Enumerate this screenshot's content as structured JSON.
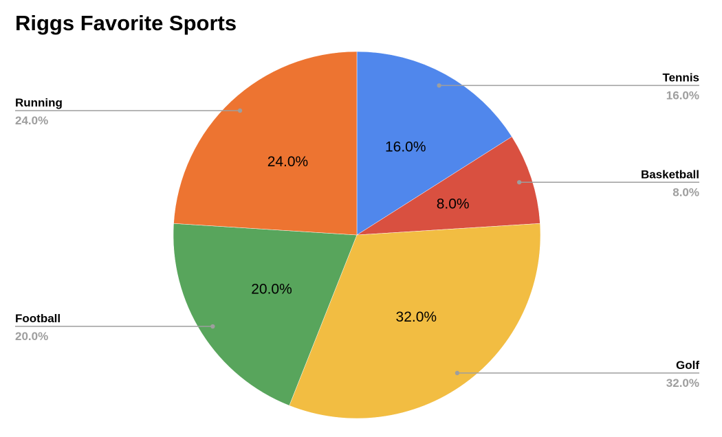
{
  "chart_data": {
    "type": "pie",
    "title": "Riggs Favorite Sports",
    "slices": [
      {
        "label": "Tennis",
        "value": 16.0,
        "display": "16.0%",
        "color": "#5087ec"
      },
      {
        "label": "Basketball",
        "value": 8.0,
        "display": "8.0%",
        "color": "#d95040"
      },
      {
        "label": "Golf",
        "value": 32.0,
        "display": "32.0%",
        "color": "#f2bd42"
      },
      {
        "label": "Football",
        "value": 20.0,
        "display": "20.0%",
        "color": "#58a55c"
      },
      {
        "label": "Running",
        "value": 24.0,
        "display": "24.0%",
        "color": "#ed7431"
      }
    ],
    "legend": "callouts",
    "label_color": "#9e9e9e"
  }
}
